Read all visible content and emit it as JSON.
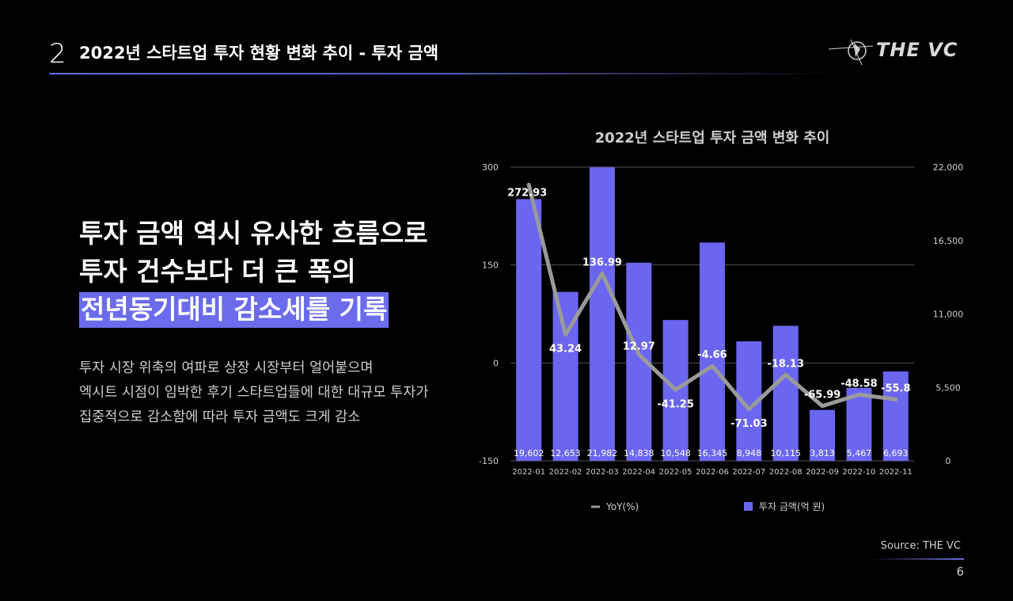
{
  "header": {
    "section_number": "2",
    "title": "2022년 스타트업 투자 현황 변화 추이 - 투자 금액",
    "logo_text": "THE VC"
  },
  "headline": {
    "line1": "투자 금액 역시 유사한 흐름으로",
    "line2": "투자 건수보다 더 큰 폭의",
    "line3": "전년동기대비 감소세를 기록"
  },
  "description": {
    "line1": "투자 시장 위축의 여파로 상장 시장부터 얼어붙으며",
    "line2": "엑시트 시점이 임박한 후기 스타트업들에 대한 대규모 투자가",
    "line3": "집중적으로 감소함에 따라 투자 금액도 크게 감소"
  },
  "colors": {
    "bar": "#6b66f0",
    "line": "#9a9a9a",
    "accent": "#6b6bec"
  },
  "chart_data": {
    "type": "bar+line",
    "title": "2022년 스타트업 투자 금액 변화 추이",
    "categories": [
      "2022-01",
      "2022-02",
      "2022-03",
      "2022-04",
      "2022-05",
      "2022-06",
      "2022-07",
      "2022-08",
      "2022-09",
      "2022-10",
      "2022-11"
    ],
    "series": [
      {
        "name": "투자 금액(억 원)",
        "type": "bar",
        "axis": "right",
        "values": [
          19602,
          12653,
          21982,
          14838,
          10548,
          16345,
          8948,
          10115,
          3813,
          5467,
          6693
        ],
        "labels": [
          "19,602",
          "12,653",
          "21,982",
          "14,838",
          "10,548",
          "16,345",
          "8,948",
          "10,115",
          "3,813",
          "5,467",
          "6,693"
        ]
      },
      {
        "name": "YoY(%)",
        "type": "line",
        "axis": "left",
        "values": [
          272.93,
          43.24,
          136.99,
          12.97,
          -41.25,
          -4.66,
          -71.03,
          -18.13,
          -65.99,
          -48.58,
          -55.8
        ],
        "labels": [
          "272.93",
          "43.24",
          "136.99",
          "12.97",
          "-41.25",
          "-4.66",
          "-71.03",
          "-18.13",
          "-65.99",
          "-48.58",
          "-55.8"
        ]
      }
    ],
    "left_axis": {
      "range": [
        -150,
        300
      ],
      "ticks": [
        "300",
        "150",
        "0",
        "-150"
      ]
    },
    "right_axis": {
      "range": [
        0,
        22000
      ],
      "ticks": [
        "22,000",
        "16,500",
        "11,000",
        "5,500",
        "0"
      ]
    },
    "legend": {
      "position": "bottom",
      "line_label": "YoY(%)",
      "bar_label": "투자 금액(억 원)"
    }
  },
  "footer": {
    "source": "Source: THE VC",
    "page_number": "6"
  }
}
